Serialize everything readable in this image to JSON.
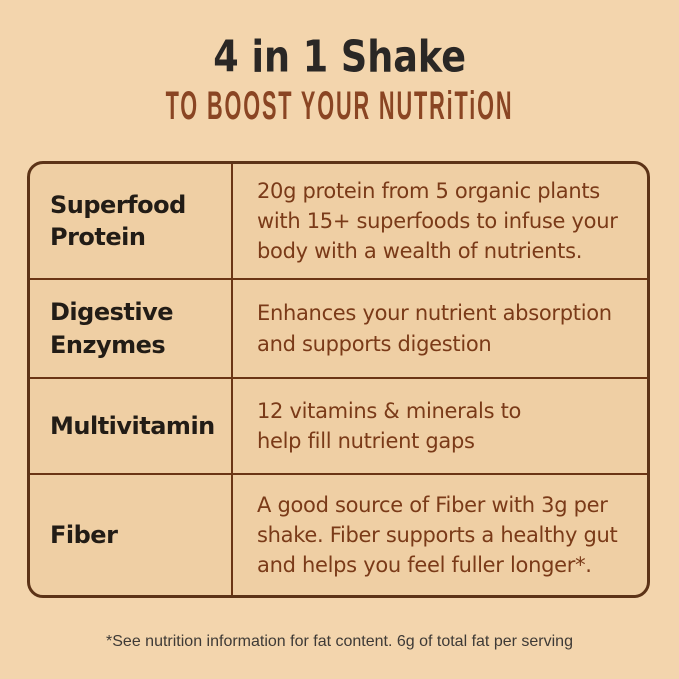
{
  "colors": {
    "page_background": "#f3d5ad",
    "table_background": "#efcfa4",
    "table_border": "#5c3317",
    "divider": "#6b3514",
    "title_text": "#2a2725",
    "subtitle_text": "#8a4523",
    "label_text": "#221c16",
    "description_text": "#7a3a18",
    "footnote_text": "#3e3a36"
  },
  "header": {
    "title": "4 in 1 Shake",
    "subtitle": "TO BOOST YOUR NUTRiTiON"
  },
  "table": {
    "rows": [
      {
        "label": "Superfood\nProtein",
        "description": "20g protein from 5 organic plants\nwith 15+ superfoods to infuse your\nbody with a wealth of nutrients."
      },
      {
        "label": "Digestive\nEnzymes",
        "description": "Enhances your nutrient absorption\nand supports digestion"
      },
      {
        "label": "Multivitamin",
        "description": "12 vitamins & minerals to\nhelp fill nutrient gaps"
      },
      {
        "label": "Fiber",
        "description": "A good source of Fiber with 3g per\nshake. Fiber supports a healthy gut\nand helps you feel fuller longer*."
      }
    ]
  },
  "footnote": "*See nutrition information for fat content. 6g of total fat per serving"
}
